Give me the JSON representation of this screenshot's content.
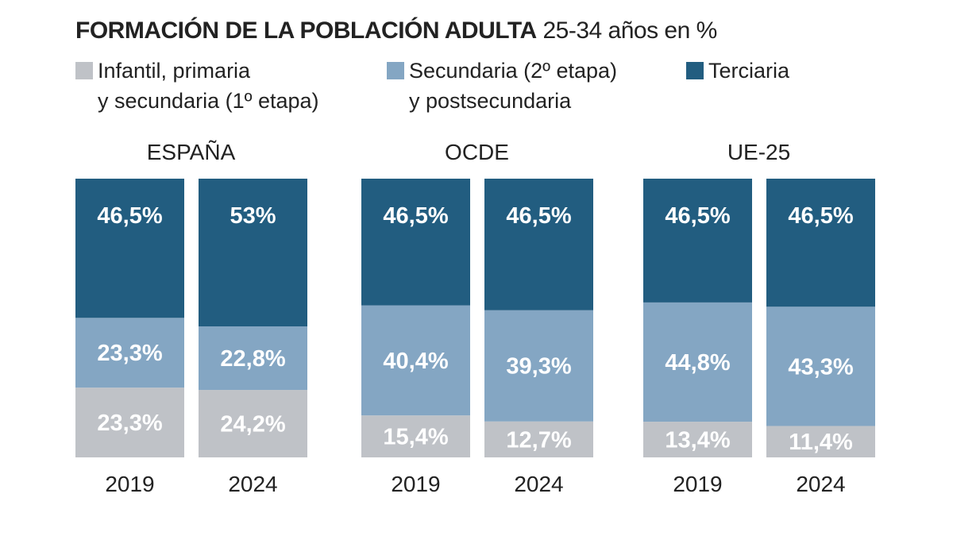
{
  "title": {
    "bold": "FORMACIÓN DE LA POBLACIÓN ADULTA",
    "rest": " 25-34 años en %"
  },
  "colors": {
    "primaria": "#bfc2c7",
    "secundaria": "#84a6c3",
    "terciaria": "#225d80"
  },
  "legend": [
    {
      "key": "primaria",
      "line1": "Infantil, primaria",
      "line2": "y secundaria (1º etapa)"
    },
    {
      "key": "secundaria",
      "line1": "Secundaria (2º etapa)",
      "line2": "y postsecundaria"
    },
    {
      "key": "terciaria",
      "line1": "Terciaria",
      "line2": ""
    }
  ],
  "chart_data": {
    "type": "bar",
    "stacked": true,
    "title": "FORMACIÓN DE LA POBLACIÓN ADULTA 25-34 años en %",
    "groups": [
      "ESPAÑA",
      "OCDE",
      "UE-25"
    ],
    "categories": [
      "2019",
      "2024"
    ],
    "series": [
      {
        "name": "Infantil, primaria y secundaria (1º etapa)",
        "key": "primaria",
        "values": {
          "ESPAÑA": [
            23.3,
            24.2
          ],
          "OCDE": [
            15.4,
            12.7
          ],
          "UE-25": [
            13.4,
            11.4
          ]
        },
        "labels": {
          "ESPAÑA": [
            "23,3%",
            "24,2%"
          ],
          "OCDE": [
            "15,4%",
            "12,7%"
          ],
          "UE-25": [
            "13,4%",
            "11,4%"
          ]
        }
      },
      {
        "name": "Secundaria (2º etapa) y postsecundaria",
        "key": "secundaria",
        "values": {
          "ESPAÑA": [
            23.3,
            22.8
          ],
          "OCDE": [
            40.4,
            39.3
          ],
          "UE-25": [
            44.8,
            43.3
          ]
        },
        "labels": {
          "ESPAÑA": [
            "23,3%",
            "22,8%"
          ],
          "OCDE": [
            "40,4%",
            "39,3%"
          ],
          "UE-25": [
            "44,8%",
            "43,3%"
          ]
        }
      },
      {
        "name": "Terciaria",
        "key": "terciaria",
        "values": {
          "ESPAÑA": [
            46.5,
            53
          ],
          "OCDE": [
            46.5,
            46.5
          ],
          "UE-25": [
            46.5,
            46.5
          ]
        },
        "labels": {
          "ESPAÑA": [
            "46,5%",
            "53%"
          ],
          "OCDE": [
            "46,5%",
            "46,5%"
          ],
          "UE-25": [
            "46,5%",
            "46,5%"
          ]
        }
      }
    ],
    "xlabel": "",
    "ylabel": "",
    "ylim": [
      0,
      100
    ],
    "grid": false,
    "legend_position": "top-left"
  }
}
